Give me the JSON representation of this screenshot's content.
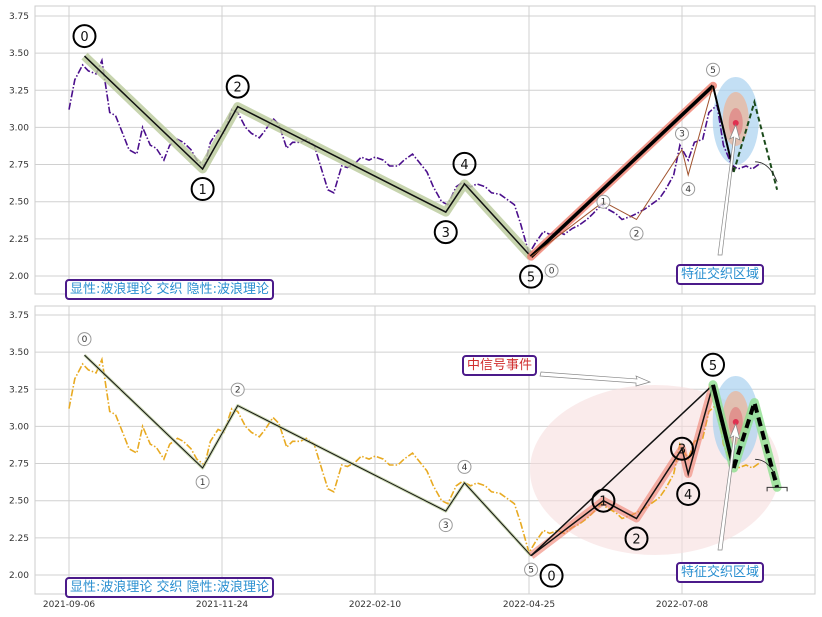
{
  "colors": {
    "top_price": "#4b0f8c",
    "bottom_price": "#e8aa22",
    "box_border": "#4b1a8a",
    "box_text_blue": "#2a8fd0",
    "box_text_red": "#d03030",
    "wave_halo_green": "#b9c99a",
    "wave_halo_red": "#f08070",
    "projection_halo": "#8fe08f",
    "zone_blue": "#a9d2ef",
    "event_zone": "#f6dede"
  },
  "chart_data": [
    {
      "type": "line",
      "panel": "top",
      "ylim": [
        1.8,
        3.82
      ],
      "yticks": [
        "2.00",
        "2.25",
        "2.50",
        "2.75",
        "3.00",
        "3.25",
        "3.50",
        "3.75"
      ],
      "grid": true,
      "caption": "显性:波浪理论 交织 隐性:波浪理论",
      "zone_label": "特征交织区域",
      "series": [
        {
          "style": "dash-dot",
          "points": "price"
        }
      ],
      "major_wave": {
        "halo": "green",
        "labels_size": "large",
        "points": [
          {
            "date": "2021-09-14",
            "value": 3.48,
            "label": "0",
            "side": "above"
          },
          {
            "date": "2021-11-14",
            "value": 2.72,
            "label": "1",
            "side": "below"
          },
          {
            "date": "2021-12-02",
            "value": 3.14,
            "label": "2",
            "side": "above"
          },
          {
            "date": "2022-03-16",
            "value": 2.43,
            "label": "3",
            "side": "below"
          },
          {
            "date": "2022-03-25",
            "value": 2.62,
            "label": "4",
            "side": "above"
          },
          {
            "date": "2022-04-26",
            "value": 2.13,
            "label": "5",
            "side": "below"
          }
        ]
      },
      "up_wave": {
        "labels_size": "small",
        "points": [
          {
            "date": "2022-04-26",
            "value": 2.13,
            "label": "0",
            "side": "below"
          },
          {
            "date": "2022-05-31",
            "value": 2.5,
            "label": "1",
            "side": "on-line"
          },
          {
            "date": "2022-06-16",
            "value": 2.38,
            "label": "2",
            "side": "below"
          },
          {
            "date": "2022-07-08",
            "value": 2.85,
            "label": "3",
            "side": "above"
          },
          {
            "date": "2022-07-11",
            "value": 2.68,
            "label": "4",
            "side": "below"
          },
          {
            "date": "2022-07-23",
            "value": 3.28,
            "label": "5",
            "side": "above"
          }
        ]
      },
      "projection": [
        {
          "date": "2022-07-23",
          "value": 3.28
        },
        {
          "date": "2022-08-02",
          "value": 2.7
        },
        {
          "date": "2022-08-12",
          "value": 3.17
        },
        {
          "date": "2022-08-23",
          "value": 2.58
        }
      ],
      "zone_center": {
        "date": "2022-08-03",
        "value": 3.03
      }
    },
    {
      "type": "line",
      "panel": "bottom",
      "ylim": [
        1.8,
        3.82
      ],
      "yticks": [
        "2.00",
        "2.25",
        "2.50",
        "2.75",
        "3.00",
        "3.25",
        "3.50",
        "3.75"
      ],
      "grid": true,
      "caption": "显性:波浪理论 交织 隐性:波浪理论",
      "zone_label": "特征交织区域",
      "event_label": "中信号事件",
      "series": [
        {
          "style": "dash-dot",
          "points": "price"
        }
      ],
      "major_wave": {
        "halo": "thin",
        "labels_size": "small",
        "points": [
          {
            "date": "2021-09-14",
            "value": 3.48,
            "label": "0",
            "side": "above"
          },
          {
            "date": "2021-11-14",
            "value": 2.72,
            "label": "1",
            "side": "below"
          },
          {
            "date": "2021-12-02",
            "value": 3.14,
            "label": "2",
            "side": "above"
          },
          {
            "date": "2022-03-16",
            "value": 2.43,
            "label": "3",
            "side": "below"
          },
          {
            "date": "2022-03-25",
            "value": 2.62,
            "label": "4",
            "side": "above"
          },
          {
            "date": "2022-04-26",
            "value": 2.13,
            "label": "5",
            "side": "below"
          }
        ]
      },
      "up_wave": {
        "labels_size": "large",
        "points": [
          {
            "date": "2022-04-26",
            "value": 2.13,
            "label": "0",
            "side": "below"
          },
          {
            "date": "2022-05-31",
            "value": 2.5,
            "label": "1",
            "side": "on-line"
          },
          {
            "date": "2022-06-16",
            "value": 2.38,
            "label": "2",
            "side": "below"
          },
          {
            "date": "2022-07-08",
            "value": 2.85,
            "label": "3",
            "side": "on-line"
          },
          {
            "date": "2022-07-11",
            "value": 2.68,
            "label": "4",
            "side": "below"
          },
          {
            "date": "2022-07-23",
            "value": 3.28,
            "label": "5",
            "side": "above"
          }
        ]
      },
      "projection": [
        {
          "date": "2022-07-23",
          "value": 3.28
        },
        {
          "date": "2022-08-02",
          "value": 2.72
        },
        {
          "date": "2022-08-12",
          "value": 3.16
        },
        {
          "date": "2022-08-23",
          "value": 2.59
        }
      ],
      "zone_center": {
        "date": "2022-08-03",
        "value": 3.03
      }
    }
  ],
  "xticks": [
    "2021-09-06",
    "2021-11-24",
    "2022-02-10",
    "2022-04-25",
    "2022-07-08"
  ],
  "price": [
    [
      "2021-09-06",
      3.12
    ],
    [
      "2021-09-09",
      3.32
    ],
    [
      "2021-09-13",
      3.42
    ],
    [
      "2021-09-16",
      3.38
    ],
    [
      "2021-09-20",
      3.36
    ],
    [
      "2021-09-23",
      3.45
    ],
    [
      "2021-09-27",
      3.1
    ],
    [
      "2021-09-30",
      3.08
    ],
    [
      "2021-10-04",
      2.95
    ],
    [
      "2021-10-07",
      2.85
    ],
    [
      "2021-10-11",
      2.82
    ],
    [
      "2021-10-14",
      3.0
    ],
    [
      "2021-10-18",
      2.88
    ],
    [
      "2021-10-21",
      2.86
    ],
    [
      "2021-10-25",
      2.78
    ],
    [
      "2021-10-28",
      2.88
    ],
    [
      "2021-11-01",
      2.92
    ],
    [
      "2021-11-04",
      2.9
    ],
    [
      "2021-11-08",
      2.85
    ],
    [
      "2021-11-11",
      2.78
    ],
    [
      "2021-11-15",
      2.74
    ],
    [
      "2021-11-18",
      2.9
    ],
    [
      "2021-11-22",
      2.98
    ],
    [
      "2021-11-25",
      2.96
    ],
    [
      "2021-11-29",
      3.12
    ],
    [
      "2021-12-02",
      3.1
    ],
    [
      "2021-12-06",
      3.0
    ],
    [
      "2021-12-09",
      2.96
    ],
    [
      "2021-12-13",
      2.93
    ],
    [
      "2021-12-16",
      2.98
    ],
    [
      "2021-12-20",
      3.06
    ],
    [
      "2021-12-23",
      3.02
    ],
    [
      "2021-12-27",
      2.86
    ],
    [
      "2021-12-30",
      2.9
    ],
    [
      "2022-01-03",
      2.9
    ],
    [
      "2022-01-06",
      2.92
    ],
    [
      "2022-01-10",
      2.88
    ],
    [
      "2022-01-13",
      2.75
    ],
    [
      "2022-01-17",
      2.58
    ],
    [
      "2022-01-20",
      2.56
    ],
    [
      "2022-01-24",
      2.74
    ],
    [
      "2022-01-27",
      2.73
    ],
    [
      "2022-01-31",
      2.76
    ],
    [
      "2022-02-03",
      2.8
    ],
    [
      "2022-02-07",
      2.78
    ],
    [
      "2022-02-10",
      2.8
    ],
    [
      "2022-02-14",
      2.78
    ],
    [
      "2022-02-17",
      2.74
    ],
    [
      "2022-02-21",
      2.74
    ],
    [
      "2022-02-24",
      2.78
    ],
    [
      "2022-02-28",
      2.82
    ],
    [
      "2022-03-03",
      2.77
    ],
    [
      "2022-03-07",
      2.7
    ],
    [
      "2022-03-10",
      2.6
    ],
    [
      "2022-03-14",
      2.5
    ],
    [
      "2022-03-17",
      2.48
    ],
    [
      "2022-03-21",
      2.6
    ],
    [
      "2022-03-24",
      2.63
    ],
    [
      "2022-03-28",
      2.6
    ],
    [
      "2022-03-31",
      2.62
    ],
    [
      "2022-04-04",
      2.6
    ],
    [
      "2022-04-07",
      2.56
    ],
    [
      "2022-04-11",
      2.55
    ],
    [
      "2022-04-14",
      2.52
    ],
    [
      "2022-04-18",
      2.48
    ],
    [
      "2022-04-21",
      2.35
    ],
    [
      "2022-04-25",
      2.15
    ],
    [
      "2022-04-28",
      2.22
    ],
    [
      "2022-05-02",
      2.3
    ],
    [
      "2022-05-05",
      2.28
    ],
    [
      "2022-05-09",
      2.3
    ],
    [
      "2022-05-12",
      2.28
    ],
    [
      "2022-05-16",
      2.32
    ],
    [
      "2022-05-19",
      2.34
    ],
    [
      "2022-05-23",
      2.38
    ],
    [
      "2022-05-26",
      2.42
    ],
    [
      "2022-05-30",
      2.48
    ],
    [
      "2022-06-02",
      2.45
    ],
    [
      "2022-06-06",
      2.42
    ],
    [
      "2022-06-09",
      2.38
    ],
    [
      "2022-06-13",
      2.4
    ],
    [
      "2022-06-16",
      2.42
    ],
    [
      "2022-06-20",
      2.45
    ],
    [
      "2022-06-23",
      2.48
    ],
    [
      "2022-06-27",
      2.52
    ],
    [
      "2022-06-30",
      2.58
    ],
    [
      "2022-07-04",
      2.68
    ],
    [
      "2022-07-07",
      2.88
    ],
    [
      "2022-07-11",
      2.78
    ],
    [
      "2022-07-14",
      2.9
    ],
    [
      "2022-07-18",
      2.92
    ],
    [
      "2022-07-21",
      3.1
    ],
    [
      "2022-07-25",
      3.15
    ],
    [
      "2022-07-28",
      2.88
    ],
    [
      "2022-08-01",
      2.75
    ],
    [
      "2022-08-04",
      2.72
    ],
    [
      "2022-08-08",
      2.74
    ],
    [
      "2022-08-11",
      2.72
    ],
    [
      "2022-08-15",
      2.76
    ]
  ]
}
